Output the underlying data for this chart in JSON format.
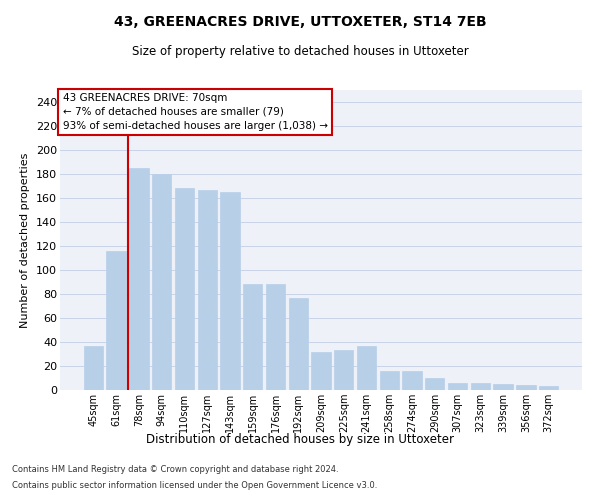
{
  "title": "43, GREENACRES DRIVE, UTTOXETER, ST14 7EB",
  "subtitle": "Size of property relative to detached houses in Uttoxeter",
  "xlabel": "Distribution of detached houses by size in Uttoxeter",
  "ylabel": "Number of detached properties",
  "footer_line1": "Contains HM Land Registry data © Crown copyright and database right 2024.",
  "footer_line2": "Contains public sector information licensed under the Open Government Licence v3.0.",
  "categories": [
    "45sqm",
    "61sqm",
    "78sqm",
    "94sqm",
    "110sqm",
    "127sqm",
    "143sqm",
    "159sqm",
    "176sqm",
    "192sqm",
    "209sqm",
    "225sqm",
    "241sqm",
    "258sqm",
    "274sqm",
    "290sqm",
    "307sqm",
    "323sqm",
    "339sqm",
    "356sqm",
    "372sqm"
  ],
  "values": [
    37,
    116,
    185,
    180,
    168,
    167,
    165,
    88,
    88,
    77,
    32,
    33,
    37,
    16,
    16,
    10,
    6,
    6,
    5,
    4,
    3
  ],
  "bar_color": "#b8cfe8",
  "bar_edgecolor": "#b8cfe8",
  "grid_color": "#c8d4e8",
  "vline_color": "#cc0000",
  "annotation_text": "43 GREENACRES DRIVE: 70sqm\n← 7% of detached houses are smaller (79)\n93% of semi-detached houses are larger (1,038) →",
  "annotation_box_color": "#cc0000",
  "annotation_box_fill": "#ffffff",
  "ylim": [
    0,
    250
  ],
  "yticks": [
    0,
    20,
    40,
    60,
    80,
    100,
    120,
    140,
    160,
    180,
    200,
    220,
    240
  ],
  "figsize": [
    6.0,
    5.0
  ],
  "dpi": 100,
  "background_color": "#eef2f8"
}
